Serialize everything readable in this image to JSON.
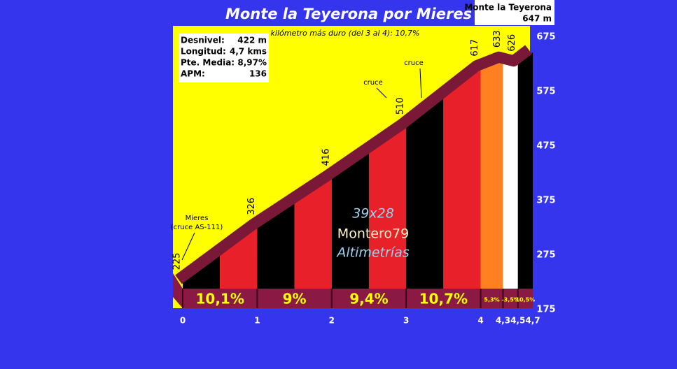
{
  "chart_data": {
    "type": "elevation-profile",
    "title": "Monte la Teyerona por Mieres",
    "summit": {
      "name": "Monte la Teyerona",
      "height": "647 m"
    },
    "note": "kilómetro más duro (del 3 al 4):  10,7%",
    "stats": [
      {
        "label": "Desnivel:",
        "value": "422 m"
      },
      {
        "label": "Longitud:",
        "value": "4,7 kms"
      },
      {
        "label": "Pte. Media:",
        "value": "8,97%"
      },
      {
        "label": "APM:",
        "value": "136"
      }
    ],
    "x": [
      0,
      1,
      2,
      3,
      4,
      4.3,
      4.5,
      4.7
    ],
    "values": [
      225,
      326,
      416,
      510,
      617,
      633,
      626,
      647
    ],
    "grades": {
      "values": [
        10.1,
        9,
        9.4,
        10.7,
        5.3,
        -3.5,
        10.5
      ],
      "value_labels": [
        "10,1%",
        "9%",
        "9,4%",
        "10,7%",
        "5,3%",
        "-3,5%",
        "10,5%"
      ],
      "colors": [
        "#e8202a",
        "#e8202a",
        "#e8202a",
        "#e8202a",
        "#ff8020",
        "#ffffff",
        "#000000"
      ]
    },
    "xlim": [
      0,
      4.7
    ],
    "xticks": [
      0,
      1,
      2,
      3,
      4,
      {
        "value": 4.3,
        "label": "4,3"
      },
      {
        "value": 4.5,
        "label": "4,5"
      },
      {
        "value": 4.7,
        "label": "4,7"
      }
    ],
    "ylim": [
      175,
      675
    ],
    "yticks": [
      175,
      275,
      375,
      475,
      575,
      675
    ],
    "annotations": [
      {
        "lines": [
          "Mieres",
          "(cruce AS-111)"
        ]
      },
      {
        "lines": [
          "cruce"
        ]
      },
      {
        "lines": [
          "cruce"
        ]
      }
    ],
    "credits": [
      "39x28",
      "Montero79",
      "Altimetrías"
    ]
  }
}
